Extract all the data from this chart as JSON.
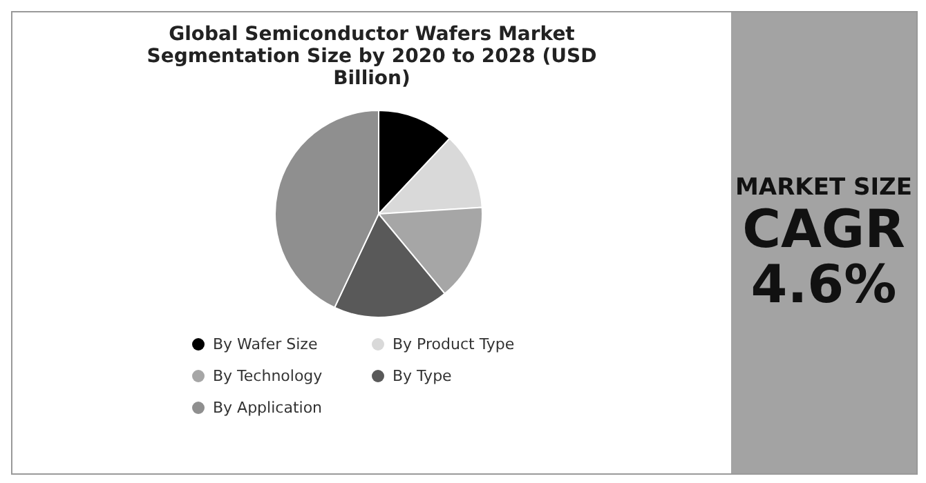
{
  "chart_data": [
    {
      "type": "pie",
      "title": "Global Semiconductor Wafers Market Segmentation Size by 2020 to 2028 (USD Billion)",
      "categories": [
        "By Wafer Size",
        "By Product Type",
        "By Technology",
        "By Type",
        "By Application"
      ],
      "values": [
        12,
        12,
        15,
        18,
        43
      ],
      "colors": [
        "#000000",
        "#d9d9d9",
        "#a6a6a6",
        "#595959",
        "#8f8f8f"
      ],
      "legend": "bottom"
    },
    {
      "type": "other",
      "title": "MARKET SIZE",
      "annotations": [
        "CAGR",
        "4.6%"
      ]
    }
  ]
}
